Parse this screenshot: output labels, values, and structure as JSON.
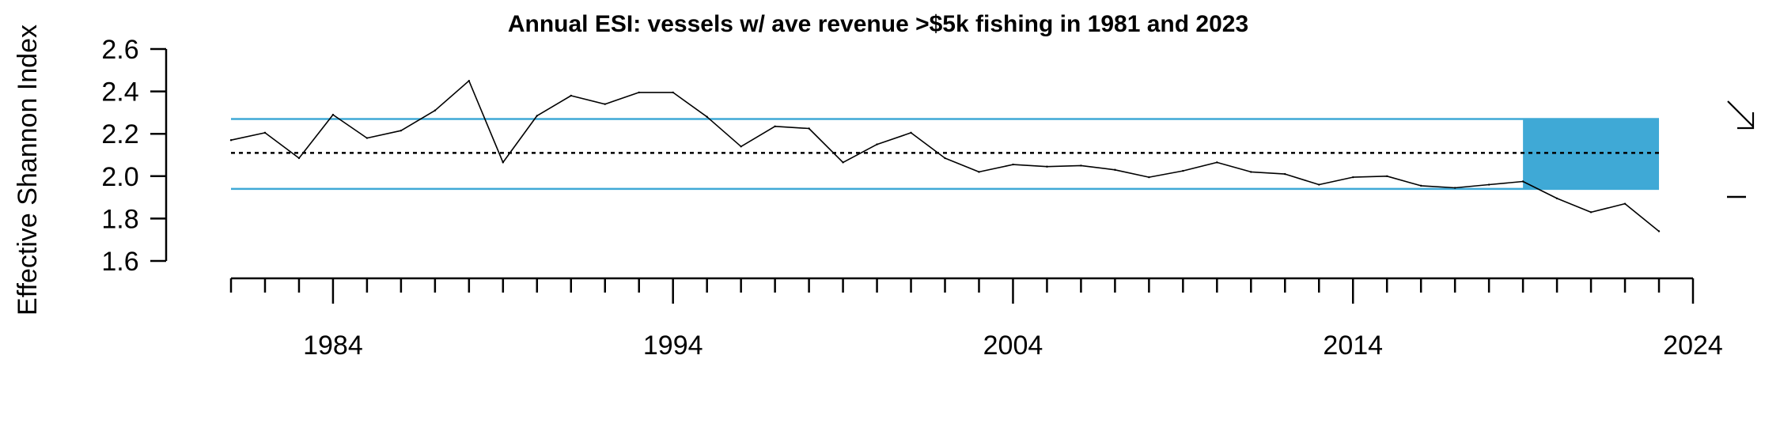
{
  "chart_data": {
    "type": "line",
    "title": "Annual ESI: vessels w/ ave revenue >$5k fishing in 1981 and 2023",
    "xlabel": "",
    "ylabel": "Effective Shannon Index",
    "x": [
      1981,
      1982,
      1983,
      1984,
      1985,
      1986,
      1987,
      1988,
      1989,
      1990,
      1991,
      1992,
      1993,
      1994,
      1995,
      1996,
      1997,
      1998,
      1999,
      2000,
      2001,
      2002,
      2003,
      2004,
      2005,
      2006,
      2007,
      2008,
      2009,
      2010,
      2011,
      2012,
      2013,
      2014,
      2015,
      2016,
      2017,
      2018,
      2019,
      2020,
      2021,
      2022,
      2023
    ],
    "series": [
      {
        "values": [
          2.17,
          2.205,
          2.085,
          2.29,
          2.18,
          2.215,
          2.31,
          2.45,
          2.065,
          2.285,
          2.38,
          2.34,
          2.395,
          2.395,
          2.28,
          2.14,
          2.235,
          2.225,
          2.065,
          2.15,
          2.205,
          2.085,
          2.02,
          2.055,
          2.045,
          2.05,
          2.03,
          1.995,
          2.025,
          2.065,
          2.02,
          2.01,
          1.96,
          1.995,
          2.0,
          1.955,
          1.945,
          1.96,
          1.975,
          1.895,
          1.83,
          1.87,
          1.74
        ],
        "color": "#000000"
      }
    ],
    "mean": 2.11,
    "upper_band": 2.27,
    "lower_band": 1.94,
    "band_color": "#3FA9D6",
    "highlight_range_x": [
      2019,
      2023
    ],
    "ylim": [
      1.6,
      2.6
    ],
    "yticks": [
      "1.6",
      "1.8",
      "2.0",
      "2.2",
      "2.4",
      "2.6"
    ],
    "xlim": [
      1981,
      2024
    ],
    "xticks_major": [
      "1984",
      "1994",
      "2004",
      "2014",
      "2024"
    ],
    "trend_indicator": "arrow-down-right",
    "level_indicator": "dash",
    "grid": false
  }
}
